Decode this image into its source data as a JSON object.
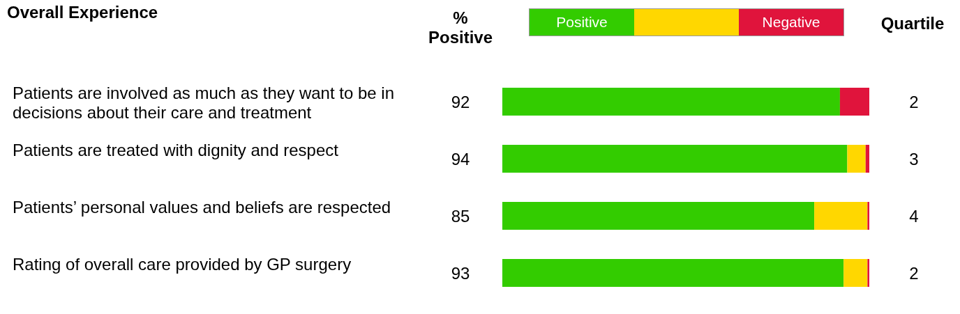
{
  "chart_data": {
    "type": "bar",
    "orientation": "horizontal",
    "stacked": true,
    "title": "Overall Experience",
    "categories": [
      "Patients are involved as much as they want to be in decisions about their care and treatment",
      "Patients are treated with dignity and respect",
      "Patients’ personal values and beliefs are respected",
      "Rating of overall care provided by GP surgery"
    ],
    "series": [
      {
        "name": "Positive",
        "color": "#33cc00",
        "values": [
          92,
          94,
          85,
          93
        ],
        "value_labels": [
          "92",
          "94",
          "85",
          "93"
        ]
      },
      {
        "color": "#ffd700",
        "values": [
          0,
          5,
          14.5,
          6.5
        ]
      },
      {
        "name": "Negative",
        "color": "#e0143c",
        "values": [
          8,
          1,
          0.5,
          0.5
        ]
      }
    ],
    "xlim": [
      0,
      100
    ],
    "tick_labels": false,
    "legend": "top",
    "annotations": [
      "% Positive",
      "Quartile",
      "2",
      "3",
      "4",
      "2"
    ]
  }
}
